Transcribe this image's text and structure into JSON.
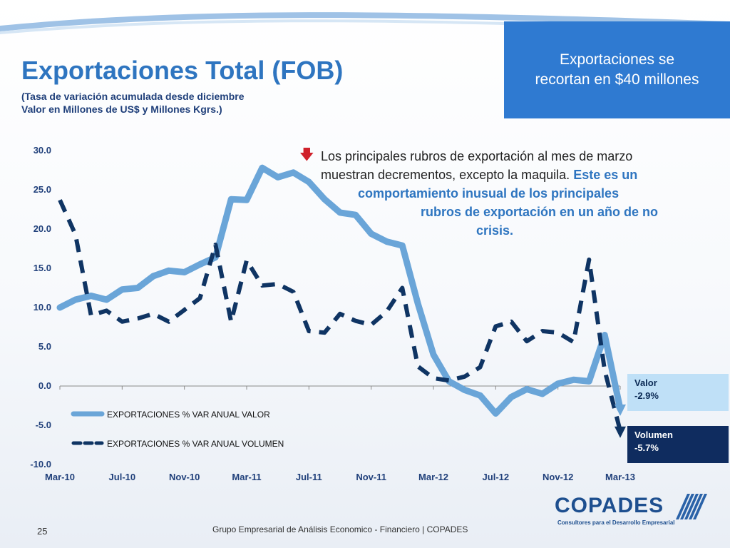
{
  "slide": {
    "title": "Exportaciones Total (FOB)",
    "subtitle_line1": "(Tasa de variación acumulada desde diciembre",
    "subtitle_line2": "Valor en Millones de US$ y Millones Kgrs.)",
    "headline_line1": "Exportaciones se",
    "headline_line2": "recortan en $40 millones",
    "comment": {
      "arrow_icon": "down-arrow-icon",
      "l1": "Los principales rubros de exportación al mes de marzo",
      "l2a": "muestran decrementos, excepto la maquila. ",
      "l2b": "Este es un",
      "l3": "comportamiento inusual de los principales",
      "l4": "rubros de exportación en un año de no",
      "l5": "crisis."
    },
    "badge_valor": {
      "label": "Valor",
      "value": "-2.9%"
    },
    "badge_volumen": {
      "label": "Volumen",
      "value": "-5.7%"
    },
    "page_number": "25",
    "footer": "Grupo Empresarial de Análisis Economico - Financiero | COPADES",
    "logo": {
      "name": "COPADES",
      "tagline": "Consultores para el Desarrollo Empresarial"
    }
  },
  "colors": {
    "title": "#2e75c0",
    "valor_line": "#6aa5d8",
    "volumen_line": "#0f3463",
    "headline_box": "#2f7ad1"
  },
  "chart_data": {
    "type": "line",
    "ylim": [
      -10,
      30
    ],
    "yticks": [
      "30.0",
      "25.0",
      "20.0",
      "15.0",
      "10.0",
      "5.0",
      "0.0",
      "-5.0",
      "-10.0"
    ],
    "ytick_values": [
      30,
      25,
      20,
      15,
      10,
      5,
      0,
      -5,
      -10
    ],
    "x": [
      "Mar-10",
      "Apr-10",
      "May-10",
      "Jun-10",
      "Jul-10",
      "Aug-10",
      "Sep-10",
      "Oct-10",
      "Nov-10",
      "Dec-10",
      "Jan-11",
      "Feb-11",
      "Mar-11",
      "Apr-11",
      "May-11",
      "Jun-11",
      "Jul-11",
      "Aug-11",
      "Sep-11",
      "Oct-11",
      "Nov-11",
      "Dec-11",
      "Jan-12",
      "Feb-12",
      "Mar-12",
      "Apr-12",
      "May-12",
      "Jun-12",
      "Jul-12",
      "Aug-12",
      "Sep-12",
      "Oct-12",
      "Nov-12",
      "Dec-12",
      "Jan-13",
      "Feb-13",
      "Mar-13"
    ],
    "xtick_labels": [
      "Mar-10",
      "Jul-10",
      "Nov-10",
      "Mar-11",
      "Jul-11",
      "Nov-11",
      "Mar-12",
      "Jul-12",
      "Nov-12",
      "Mar-13"
    ],
    "xtick_index": [
      0,
      4,
      8,
      12,
      16,
      20,
      24,
      28,
      32,
      36
    ],
    "series": [
      {
        "name": "EXPORTACIONES % VAR ANUAL VALOR",
        "style": "solid",
        "values": [
          10.0,
          11.0,
          11.5,
          11.0,
          12.3,
          12.5,
          14.0,
          14.7,
          14.5,
          15.5,
          16.4,
          23.8,
          23.7,
          27.8,
          26.6,
          27.2,
          26.0,
          23.8,
          22.1,
          21.8,
          19.4,
          18.4,
          17.9,
          10.5,
          4.0,
          0.6,
          -0.5,
          -1.2,
          -3.5,
          -1.4,
          -0.4,
          -1.0,
          0.3,
          0.8,
          0.6,
          6.5,
          -2.9
        ]
      },
      {
        "name": "EXPORTACIONES % VAR ANUAL VOLUMEN",
        "style": "dashed",
        "values": [
          23.7,
          19.3,
          9.0,
          9.6,
          8.2,
          8.6,
          9.2,
          8.2,
          9.7,
          11.2,
          18.0,
          8.2,
          16.0,
          12.8,
          13.0,
          12.0,
          7.0,
          6.8,
          9.2,
          8.3,
          7.8,
          9.5,
          12.5,
          2.5,
          1.0,
          0.7,
          1.2,
          2.4,
          7.6,
          8.2,
          5.7,
          7.0,
          6.8,
          5.6,
          16.1,
          2.0,
          -5.7
        ]
      }
    ]
  }
}
